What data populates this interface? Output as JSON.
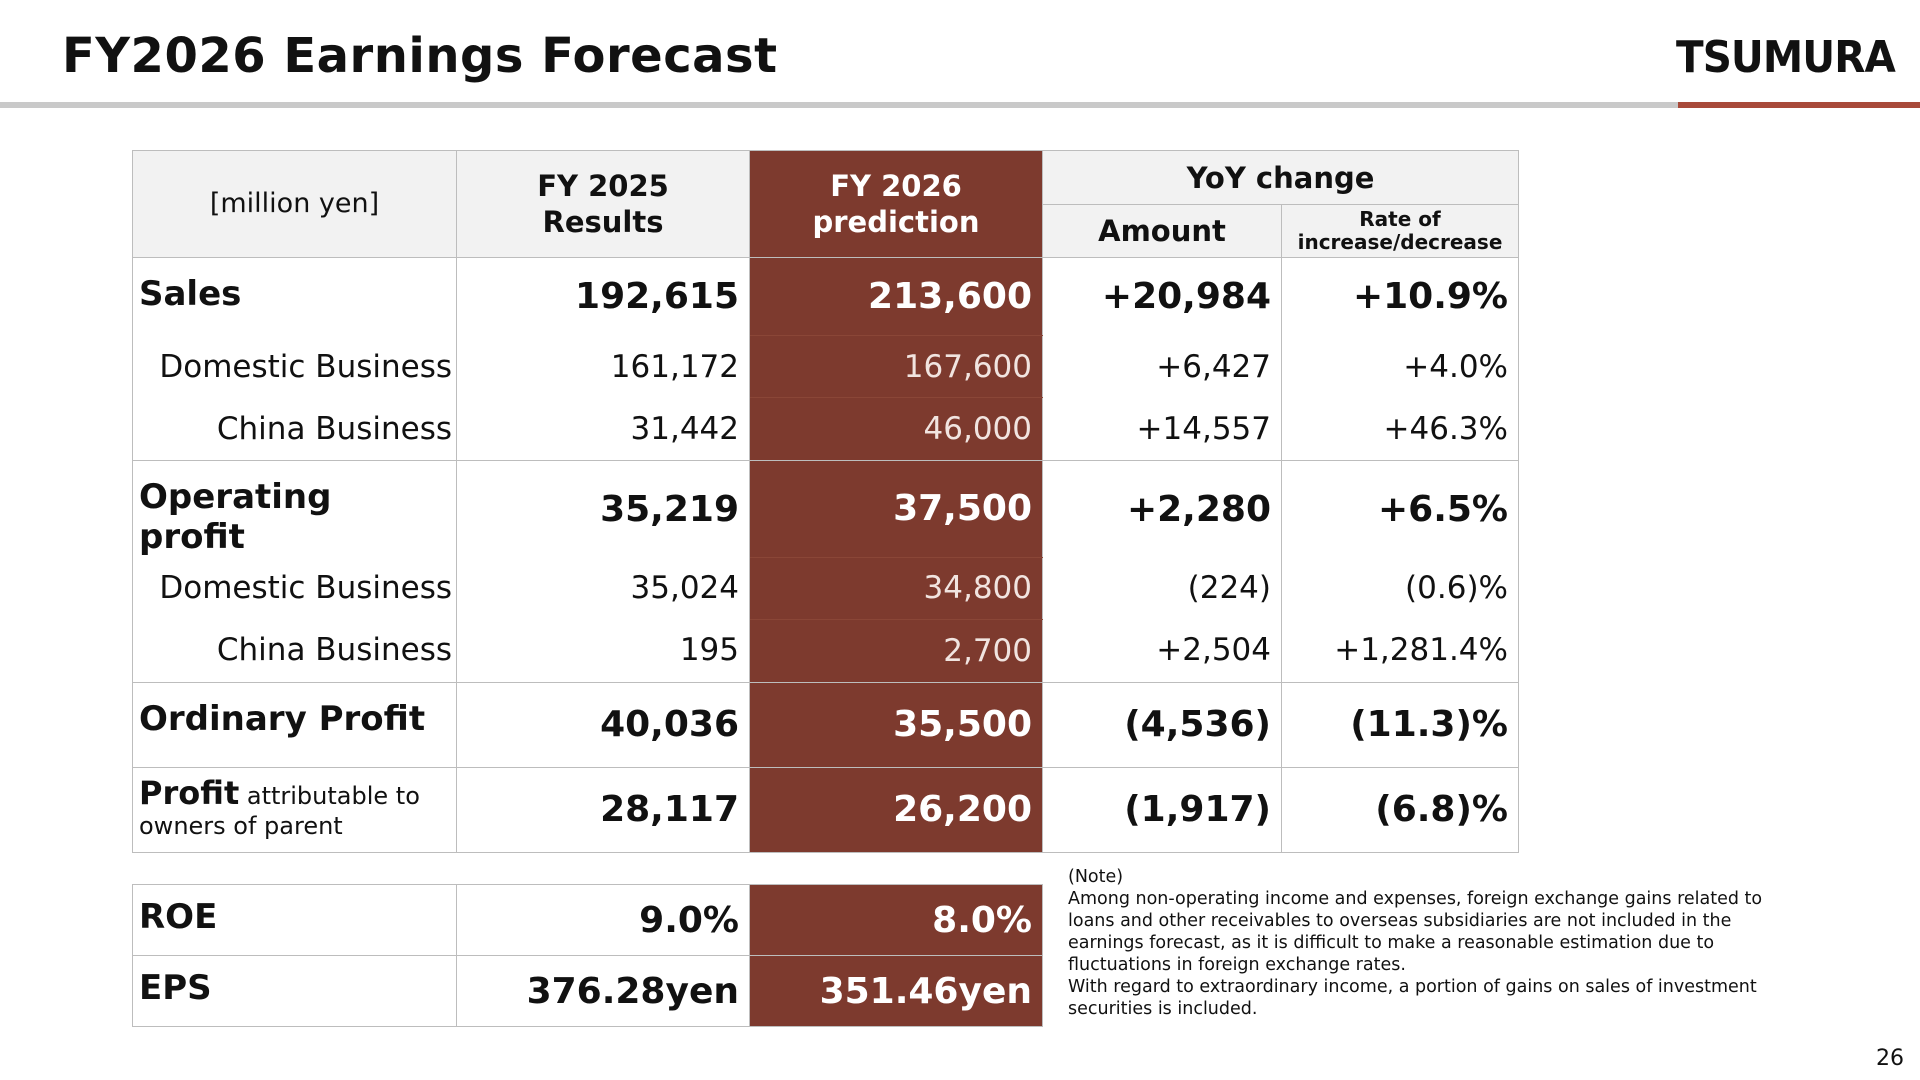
{
  "page": {
    "title": "FY2026 Earnings Forecast",
    "logo_text": "TSUMURA",
    "page_number": "26"
  },
  "colors": {
    "prediction_column": "#7d3a2e",
    "header_bg": "#f2f2f2",
    "accent_rule": "#a84a3a"
  },
  "table": {
    "unit_label": "[million yen]",
    "col_fy2025": "FY 2025\nResults",
    "col_fy2025_l1": "FY 2025",
    "col_fy2025_l2": "Results",
    "col_fy2026_l1": "FY 2026",
    "col_fy2026_l2": "prediction",
    "col_yoy": "YoY change",
    "col_amount": "Amount",
    "col_rate_l1": "Rate of",
    "col_rate_l2": "increase/decrease",
    "rows": [
      {
        "label": "Sales",
        "fy2025": "192,615",
        "fy2026": "213,600",
        "amount": "+20,984",
        "rate": "+10.9%"
      },
      {
        "label": "Domestic Business",
        "fy2025": "161,172",
        "fy2026": "167,600",
        "amount": "+6,427",
        "rate": "+4.0%"
      },
      {
        "label": "China Business",
        "fy2025": "31,442",
        "fy2026": "46,000",
        "amount": "+14,557",
        "rate": "+46.3%"
      },
      {
        "label": "Operating profit",
        "fy2025": "35,219",
        "fy2026": "37,500",
        "amount": "+2,280",
        "rate": "+6.5%"
      },
      {
        "label": "Domestic Business",
        "fy2025": "35,024",
        "fy2026": "34,800",
        "amount": "(224)",
        "rate": "(0.6)%"
      },
      {
        "label": "China Business",
        "fy2025": "195",
        "fy2026": "2,700",
        "amount": "+2,504",
        "rate": "+1,281.4%"
      },
      {
        "label": "Ordinary Profit",
        "fy2025": "40,036",
        "fy2026": "35,500",
        "amount": "(4,536)",
        "rate": "(11.3)%"
      },
      {
        "label_bold": "Profit",
        "label_rest": " attributable to owners of parent",
        "fy2025": "28,117",
        "fy2026": "26,200",
        "amount": "(1,917)",
        "rate": "(6.8)%"
      }
    ]
  },
  "kpi": [
    {
      "label": "ROE",
      "fy2025": "9.0%",
      "fy2026": "8.0%"
    },
    {
      "label": "EPS",
      "fy2025": "376.28yen",
      "fy2026": "351.46yen"
    }
  ],
  "note": {
    "heading": "(Note)",
    "p1": "Among non-operating income and expenses, foreign exchange gains related to loans and other receivables to overseas subsidiaries are not included in the earnings forecast, as it is difficult to make a reasonable estimation due to fluctuations in foreign exchange rates.",
    "p2": "With regard to extraordinary income, a portion of gains on sales of investment securities is included."
  }
}
